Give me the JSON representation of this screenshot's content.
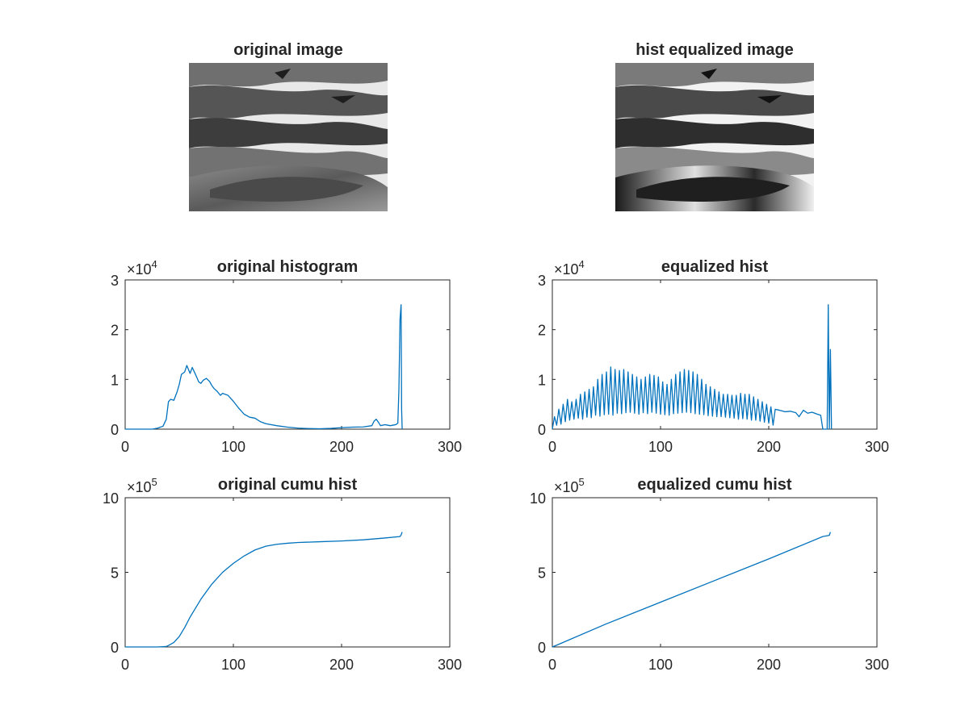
{
  "images": [
    {
      "title": "original image"
    },
    {
      "title": "hist equalized image"
    }
  ],
  "colors": {
    "series": "#0072BD",
    "axis": "#262626",
    "text": "#262626",
    "background": "#ffffff"
  },
  "chart_data": [
    {
      "type": "line",
      "title": "original histogram",
      "xlabel": "",
      "ylabel": "",
      "xlim": [
        0,
        300
      ],
      "ylim": [
        0,
        30000
      ],
      "xticks": [
        0,
        100,
        200,
        300
      ],
      "yticks": [
        0,
        10000,
        20000,
        30000
      ],
      "ytick_labels": [
        "0",
        "1",
        "2",
        "3"
      ],
      "xtick_labels": [
        "0",
        "100",
        "200",
        "300"
      ],
      "exponent": {
        "base": "×10",
        "power": "4"
      },
      "grid": false,
      "series": [
        {
          "x": [
            0,
            25,
            30,
            35,
            38,
            40,
            42,
            45,
            48,
            50,
            52,
            55,
            57,
            60,
            62,
            65,
            68,
            70,
            72,
            75,
            78,
            80,
            82,
            85,
            88,
            90,
            95,
            100,
            105,
            110,
            115,
            120,
            125,
            130,
            140,
            150,
            160,
            170,
            180,
            190,
            200,
            210,
            220,
            228,
            230,
            232,
            234,
            236,
            240,
            245,
            250,
            252,
            253,
            254,
            255,
            255.5,
            256
          ],
          "y": [
            0,
            0,
            200,
            600,
            2000,
            5500,
            6000,
            5800,
            7500,
            9000,
            11000,
            11500,
            12800,
            11200,
            12400,
            11000,
            9500,
            9200,
            9800,
            10200,
            9600,
            8800,
            8200,
            7600,
            6800,
            7200,
            6800,
            5600,
            4200,
            3000,
            2400,
            2200,
            1500,
            1100,
            700,
            400,
            200,
            120,
            80,
            150,
            300,
            400,
            450,
            700,
            1600,
            2000,
            1400,
            700,
            900,
            700,
            900,
            1200,
            8000,
            22000,
            25000,
            4000,
            0
          ]
        }
      ]
    },
    {
      "type": "line",
      "title": "equalized hist",
      "xlabel": "",
      "ylabel": "",
      "xlim": [
        0,
        300
      ],
      "ylim": [
        0,
        30000
      ],
      "xticks": [
        0,
        100,
        200,
        300
      ],
      "yticks": [
        0,
        10000,
        20000,
        30000
      ],
      "ytick_labels": [
        "0",
        "1",
        "2",
        "3"
      ],
      "xtick_labels": [
        "0",
        "100",
        "200",
        "300"
      ],
      "exponent": {
        "base": "×10",
        "power": "4"
      },
      "grid": false,
      "series": [
        {
          "x": [
            0,
            2,
            4,
            6,
            8,
            10,
            12,
            14,
            16,
            18,
            20,
            22,
            24,
            26,
            28,
            30,
            32,
            34,
            36,
            38,
            40,
            42,
            44,
            46,
            48,
            50,
            52,
            54,
            56,
            58,
            60,
            62,
            64,
            66,
            68,
            70,
            72,
            74,
            76,
            78,
            80,
            82,
            84,
            86,
            88,
            90,
            92,
            94,
            96,
            98,
            100,
            102,
            104,
            106,
            108,
            110,
            112,
            114,
            116,
            118,
            120,
            122,
            124,
            126,
            128,
            130,
            132,
            134,
            136,
            138,
            140,
            142,
            144,
            146,
            148,
            150,
            152,
            154,
            156,
            158,
            160,
            162,
            164,
            166,
            168,
            170,
            172,
            174,
            176,
            178,
            180,
            182,
            184,
            186,
            188,
            190,
            192,
            194,
            196,
            198,
            200,
            202,
            204,
            206,
            210,
            215,
            220,
            225,
            228,
            232,
            236,
            240,
            245,
            248,
            250,
            252,
            254,
            255,
            256,
            257,
            258
          ],
          "y": [
            0,
            2500,
            800,
            4000,
            1000,
            5000,
            1500,
            6000,
            1800,
            5500,
            2000,
            6000,
            2200,
            7000,
            2000,
            7500,
            2400,
            8000,
            2300,
            8500,
            2800,
            10000,
            2600,
            11000,
            2900,
            11500,
            3000,
            12500,
            2800,
            12000,
            3200,
            11800,
            3100,
            12000,
            3300,
            11500,
            3400,
            11000,
            3200,
            10500,
            3000,
            10000,
            3300,
            10500,
            3100,
            11000,
            3400,
            10800,
            3200,
            10500,
            3000,
            9500,
            2900,
            9000,
            2800,
            10000,
            3100,
            11000,
            3200,
            11500,
            3300,
            12000,
            3400,
            11800,
            3300,
            11500,
            3100,
            11000,
            3000,
            10000,
            2900,
            9000,
            2700,
            8500,
            2600,
            8000,
            2500,
            7500,
            2500,
            7000,
            2400,
            7000,
            2300,
            6800,
            2200,
            6800,
            2000,
            7200,
            2100,
            7000,
            2000,
            7000,
            1800,
            6500,
            1800,
            6000,
            1600,
            5500,
            1400,
            5000,
            1200,
            4500,
            800,
            4000,
            3800,
            3500,
            3600,
            3300,
            2500,
            3800,
            3200,
            3400,
            3000,
            2800,
            0,
            0,
            0,
            25000,
            0,
            16000,
            0
          ]
        }
      ]
    },
    {
      "type": "line",
      "title": "original cumu hist",
      "xlabel": "",
      "ylabel": "",
      "xlim": [
        0,
        300
      ],
      "ylim": [
        0,
        1000000
      ],
      "xticks": [
        0,
        100,
        200,
        300
      ],
      "yticks": [
        0,
        500000,
        1000000
      ],
      "ytick_labels": [
        "0",
        "5",
        "10"
      ],
      "xtick_labels": [
        "0",
        "100",
        "200",
        "300"
      ],
      "exponent": {
        "base": "×10",
        "power": "5"
      },
      "grid": false,
      "series": [
        {
          "x": [
            0,
            30,
            38,
            40,
            45,
            50,
            55,
            60,
            65,
            70,
            80,
            90,
            100,
            110,
            120,
            130,
            140,
            150,
            160,
            180,
            200,
            220,
            240,
            254,
            255,
            256
          ],
          "y": [
            0,
            0,
            3000,
            10000,
            30000,
            70000,
            130000,
            200000,
            260000,
            320000,
            420000,
            500000,
            560000,
            610000,
            650000,
            675000,
            688000,
            695000,
            700000,
            705000,
            710000,
            718000,
            730000,
            740000,
            750000,
            770000
          ]
        }
      ]
    },
    {
      "type": "line",
      "title": "equalized cumu hist",
      "xlabel": "",
      "ylabel": "",
      "xlim": [
        0,
        300
      ],
      "ylim": [
        0,
        1000000
      ],
      "xticks": [
        0,
        100,
        200,
        300
      ],
      "yticks": [
        0,
        500000,
        1000000
      ],
      "ytick_labels": [
        "0",
        "5",
        "10"
      ],
      "xtick_labels": [
        "0",
        "100",
        "200",
        "300"
      ],
      "exponent": {
        "base": "×10",
        "power": "5"
      },
      "grid": false,
      "series": [
        {
          "x": [
            0,
            5,
            50,
            100,
            150,
            200,
            250,
            254,
            256,
            257
          ],
          "y": [
            0,
            15000,
            155000,
            300000,
            445000,
            590000,
            740000,
            745000,
            748000,
            770000
          ]
        }
      ]
    }
  ]
}
